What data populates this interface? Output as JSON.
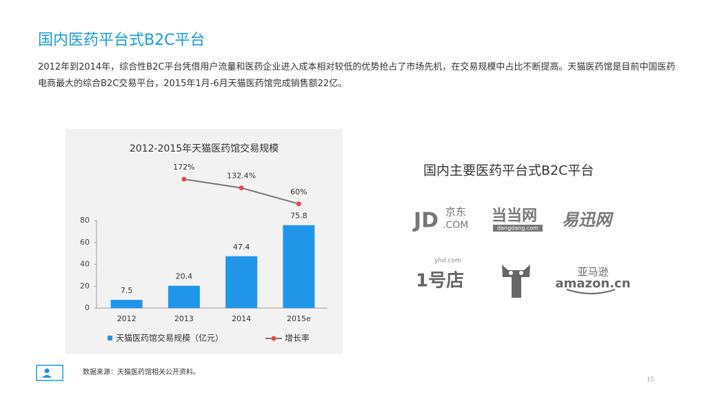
{
  "header": {
    "title": "国内医药平台式B2C平台"
  },
  "intro": "2012年到2014年，综合性B2C平台凭借用户流量和医药企业进入成本相对较低的优势抢占了市场先机，在交易规模中占比不断提高。天猫医药馆是目前中国医药电商最大的综合B2C交易平台，2015年1月-6月天猫医药馆完成销售额22亿。",
  "chart_data": {
    "type": "bar",
    "title": "2012-2015年天猫医药馆交易规模",
    "categories": [
      "2012",
      "2013",
      "2014",
      "2015e"
    ],
    "series": [
      {
        "name": "天猫医药馆交易规模（亿元）",
        "color": "#2196e8",
        "values": [
          7.5,
          20.4,
          47.4,
          75.8
        ]
      },
      {
        "name": "增长率",
        "type": "line",
        "color": "#e8474c",
        "values": [
          null,
          172,
          132.4,
          60
        ],
        "value_labels": [
          null,
          "172%",
          "132.4%",
          "60%"
        ]
      }
    ],
    "ylim": [
      0,
      80
    ],
    "yticks": [
      0,
      20,
      40,
      60,
      80
    ]
  },
  "platforms": {
    "title": "国内主要医药平台式B2C平台",
    "jd": [
      "JD",
      "京东",
      ".COM"
    ],
    "dangdang": [
      "当当网",
      "dangdang.com"
    ],
    "yixun": "易迅网",
    "yhd": [
      "1号店",
      "yhd.com"
    ],
    "amazon": [
      "亚马逊",
      "amazon.cn"
    ]
  },
  "footer": {
    "source": "数据来源：天猫医药馆相关公开资料。",
    "page": "15"
  }
}
